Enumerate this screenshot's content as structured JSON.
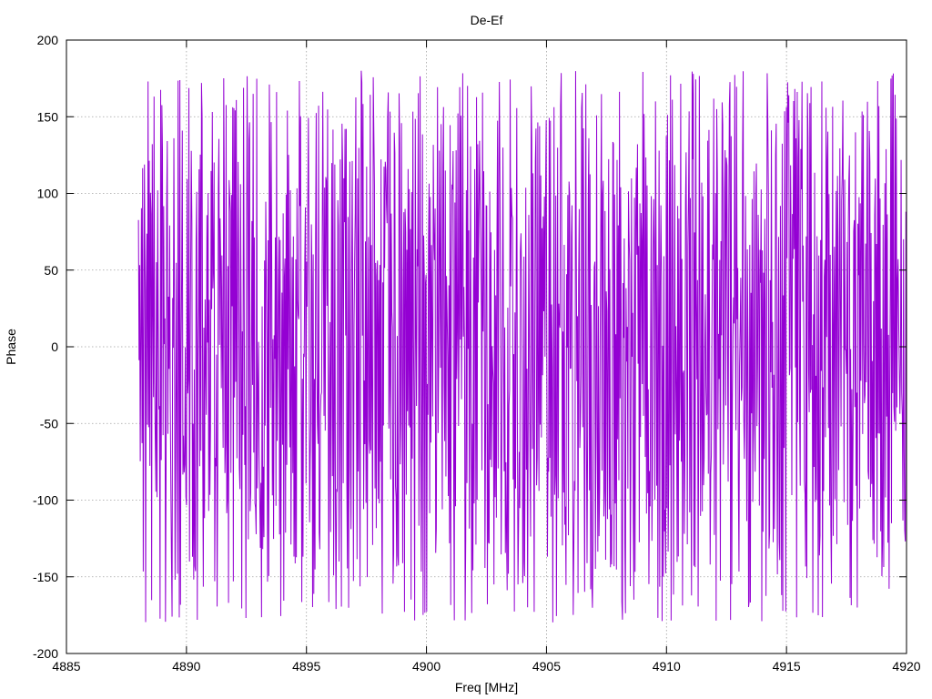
{
  "chart_data": {
    "type": "line",
    "title": "De-Ef",
    "xlabel": "Freq [MHz]",
    "ylabel": "Phase",
    "xlim": [
      4885,
      4920
    ],
    "ylim": [
      -200,
      200
    ],
    "xticks": [
      4885,
      4890,
      4895,
      4900,
      4905,
      4910,
      4915,
      4920
    ],
    "yticks": [
      -200,
      -150,
      -100,
      -50,
      0,
      50,
      100,
      150,
      200
    ],
    "grid": true,
    "series": [
      {
        "color": "#9400d3",
        "x_start": 4888.0,
        "x_end": 4920.0,
        "points": 1280,
        "value_range": [
          -180,
          180
        ]
      }
    ]
  }
}
